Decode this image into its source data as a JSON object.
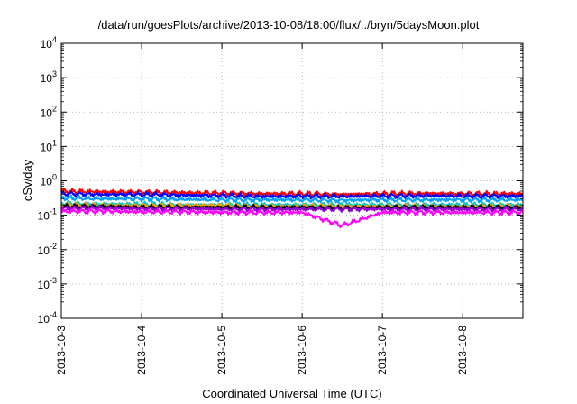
{
  "chart_data": {
    "type": "line",
    "title": "/data/run/goesPlots/archive/2013-10-08/18:00/flux/../bryn/5daysMoon.plot",
    "xlabel": "Coordinated Universal Time (UTC)",
    "ylabel": "cSv/day",
    "yscale": "log",
    "ylim": [
      0.0001,
      10000
    ],
    "y_ticks": [
      {
        "base": "10",
        "exp": "-4"
      },
      {
        "base": "10",
        "exp": "-3"
      },
      {
        "base": "10",
        "exp": "-2"
      },
      {
        "base": "10",
        "exp": "-1"
      },
      {
        "base": "10",
        "exp": "0"
      },
      {
        "base": "10",
        "exp": "1"
      },
      {
        "base": "10",
        "exp": "2"
      },
      {
        "base": "10",
        "exp": "3"
      },
      {
        "base": "10",
        "exp": "4"
      }
    ],
    "xlim": [
      "2013-10-03T00:00",
      "2013-10-08T18:00"
    ],
    "x_ticks": [
      "2013-10-3",
      "2013-10-4",
      "2013-10-5",
      "2013-10-6",
      "2013-10-7",
      "2013-10-8"
    ],
    "grid": true,
    "x": [
      "2013-10-03T00:00",
      "2013-10-03T12:00",
      "2013-10-04T00:00",
      "2013-10-04T12:00",
      "2013-10-05T00:00",
      "2013-10-05T12:00",
      "2013-10-06T00:00",
      "2013-10-06T12:00",
      "2013-10-07T00:00",
      "2013-10-07T12:00",
      "2013-10-08T00:00",
      "2013-10-08T12:00",
      "2013-10-08T18:00"
    ],
    "series": [
      {
        "color": "#ff0000",
        "values": [
          0.5,
          0.48,
          0.47,
          0.45,
          0.44,
          0.42,
          0.42,
          0.4,
          0.42,
          0.43,
          0.42,
          0.42,
          0.42
        ]
      },
      {
        "color": "#0000ff",
        "values": [
          0.42,
          0.4,
          0.4,
          0.38,
          0.37,
          0.35,
          0.36,
          0.35,
          0.36,
          0.37,
          0.36,
          0.36,
          0.36
        ]
      },
      {
        "color": "#00a0ff",
        "values": [
          0.32,
          0.3,
          0.3,
          0.29,
          0.28,
          0.28,
          0.28,
          0.27,
          0.28,
          0.28,
          0.28,
          0.28,
          0.28
        ]
      },
      {
        "color": "#00c8c8",
        "values": [
          0.22,
          0.21,
          0.21,
          0.2,
          0.2,
          0.2,
          0.2,
          0.2,
          0.2,
          0.2,
          0.2,
          0.2,
          0.2
        ]
      },
      {
        "color": "#ffa000",
        "values": [
          0.2,
          0.19,
          0.19,
          0.19,
          0.19,
          0.18,
          0.18,
          0.18,
          0.18,
          0.18,
          0.18,
          0.18,
          0.18
        ]
      },
      {
        "color": "#000000",
        "values": [
          0.18,
          0.18,
          0.17,
          0.17,
          0.17,
          0.17,
          0.17,
          0.16,
          0.17,
          0.17,
          0.17,
          0.17,
          0.17
        ]
      },
      {
        "color": "#9400d3",
        "values": [
          0.16,
          0.16,
          0.155,
          0.155,
          0.15,
          0.15,
          0.15,
          0.15,
          0.15,
          0.15,
          0.15,
          0.15,
          0.15
        ]
      },
      {
        "color": "#ff00ff",
        "values": [
          0.13,
          0.13,
          0.125,
          0.125,
          0.12,
          0.12,
          0.12,
          0.05,
          0.12,
          0.12,
          0.12,
          0.12,
          0.12
        ]
      }
    ]
  }
}
